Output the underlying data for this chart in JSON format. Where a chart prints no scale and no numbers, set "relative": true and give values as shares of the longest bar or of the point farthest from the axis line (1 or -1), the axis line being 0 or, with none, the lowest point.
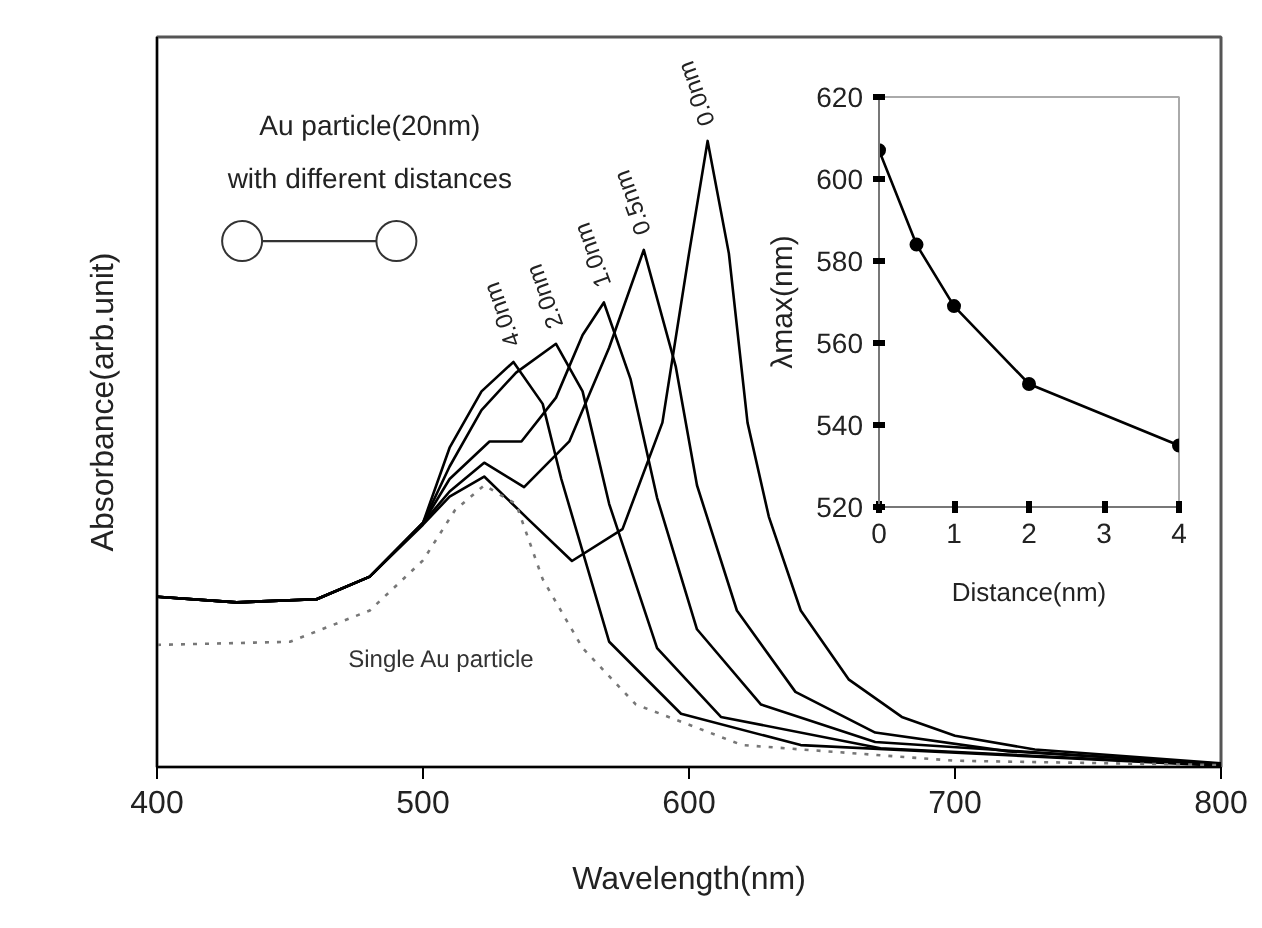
{
  "chart_data": [
    {
      "type": "line",
      "relative": true,
      "xlabel": "Wavelength(nm)",
      "ylabel": "Absorbance(arb.unit)",
      "xlim": [
        400,
        800
      ],
      "xticks": [
        400,
        500,
        600,
        700,
        800
      ],
      "grid": false,
      "marker": "none",
      "annotations": [
        "Au particle(20nm)",
        "with different distances"
      ],
      "series": [
        {
          "name": "0.0nm",
          "color": "#000000",
          "line_style": "solid",
          "x": [
            400,
            430,
            460,
            480,
            500,
            510,
            523,
            540,
            556,
            575,
            590,
            600,
            607,
            615,
            622,
            630,
            642,
            660,
            680,
            700,
            730,
            800
          ],
          "values": [
            0.272,
            0.263,
            0.268,
            0.304,
            0.387,
            0.432,
            0.464,
            0.394,
            0.329,
            0.38,
            0.55,
            0.82,
            1.0,
            0.82,
            0.55,
            0.4,
            0.25,
            0.14,
            0.08,
            0.05,
            0.028,
            0.006
          ]
        },
        {
          "name": "0.5nm",
          "color": "#000000",
          "line_style": "solid",
          "x": [
            400,
            430,
            460,
            480,
            500,
            510,
            523,
            538,
            555,
            570,
            583,
            595,
            603,
            618,
            640,
            670,
            720,
            800
          ],
          "values": [
            0.272,
            0.263,
            0.268,
            0.304,
            0.39,
            0.44,
            0.486,
            0.447,
            0.52,
            0.67,
            0.826,
            0.64,
            0.45,
            0.25,
            0.12,
            0.055,
            0.025,
            0.005
          ]
        },
        {
          "name": "1.0nm",
          "color": "#000000",
          "line_style": "solid",
          "x": [
            400,
            430,
            460,
            480,
            500,
            510,
            525,
            537,
            550,
            560,
            568,
            578,
            588,
            603,
            627,
            670,
            800
          ],
          "values": [
            0.272,
            0.263,
            0.268,
            0.304,
            0.39,
            0.46,
            0.52,
            0.52,
            0.59,
            0.69,
            0.742,
            0.62,
            0.43,
            0.22,
            0.1,
            0.04,
            0.004
          ]
        },
        {
          "name": "2.0nm",
          "color": "#000000",
          "line_style": "solid",
          "x": [
            400,
            430,
            460,
            480,
            500,
            510,
            522,
            535,
            550,
            560,
            570,
            588,
            612,
            672,
            800
          ],
          "values": [
            0.272,
            0.263,
            0.268,
            0.304,
            0.39,
            0.48,
            0.57,
            0.63,
            0.676,
            0.6,
            0.42,
            0.19,
            0.08,
            0.03,
            0.003
          ]
        },
        {
          "name": "4.0nm",
          "color": "#000000",
          "line_style": "solid",
          "x": [
            400,
            430,
            460,
            480,
            500,
            510,
            522,
            534,
            545,
            552,
            570,
            597,
            642,
            800
          ],
          "values": [
            0.272,
            0.263,
            0.268,
            0.304,
            0.39,
            0.51,
            0.6,
            0.647,
            0.58,
            0.46,
            0.2,
            0.085,
            0.035,
            0.002
          ]
        },
        {
          "name": "Single Au particle",
          "color": "#777777",
          "line_style": "dotted",
          "x": [
            400,
            450,
            480,
            500,
            512,
            523,
            535,
            545,
            560,
            580,
            620,
            700,
            800
          ],
          "values": [
            0.195,
            0.2,
            0.25,
            0.33,
            0.41,
            0.45,
            0.42,
            0.3,
            0.19,
            0.1,
            0.035,
            0.01,
            0.003
          ]
        }
      ]
    },
    {
      "type": "line",
      "xlabel": "Distance(nm)",
      "ylabel": "λmax(nm)",
      "xlim": [
        0,
        4
      ],
      "xticks": [
        0,
        1,
        2,
        3,
        4
      ],
      "ylim": [
        520,
        620
      ],
      "yticks": [
        520,
        540,
        560,
        580,
        600,
        620
      ],
      "grid": false,
      "marker": "circle",
      "line_style": "solid",
      "x": [
        0,
        0.5,
        1,
        2,
        4
      ],
      "values": [
        607,
        584,
        569,
        550,
        535
      ],
      "color": "#000000"
    }
  ]
}
